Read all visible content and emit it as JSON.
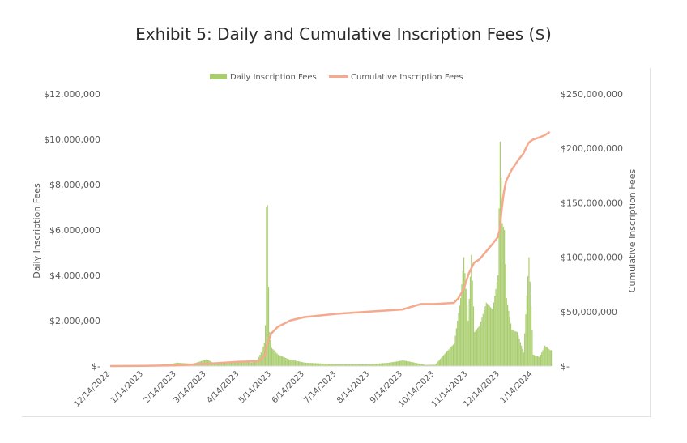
{
  "title": "Exhibit 5: Daily and Cumulative Inscription Fees ($)",
  "chart_data": {
    "type": "bar+line",
    "title": "Exhibit 5: Daily and Cumulative Inscription Fees ($)",
    "left_axis_label": "Daily Inscription Fees",
    "right_axis_label": "Cumulative Inscription Fees",
    "legend": [
      "Daily Inscription Fees",
      "Cumulative Inscription Fees"
    ],
    "legend_position": "top-center",
    "colors": {
      "daily": "#a9cd6e",
      "cumulative": "#f5a98d",
      "axis": "#d9d9d9",
      "text": "#595959"
    },
    "left_ticks": [
      "$-",
      "$2,000,000",
      "$4,000,000",
      "$6,000,000",
      "$8,000,000",
      "$10,000,000",
      "$12,000,000"
    ],
    "right_ticks": [
      "$-",
      "$50,000,000",
      "$100,000,000",
      "$150,000,000",
      "$200,000,000",
      "$250,000,000"
    ],
    "left_ylim": [
      0,
      12000000
    ],
    "right_ylim": [
      0,
      250000000
    ],
    "x_ticks": [
      "12/14/2022",
      "1/14/2023",
      "2/14/2023",
      "3/14/2023",
      "4/14/2023",
      "5/14/2023",
      "6/14/2023",
      "7/14/2023",
      "8/14/2023",
      "9/14/2023",
      "10/14/2023",
      "11/14/2023",
      "12/14/2023",
      "1/14/2024"
    ],
    "x_range": [
      "2022-12-14",
      "2024-01-31"
    ],
    "daily_series": {
      "name": "Daily Inscription Fees",
      "dates": [
        "2022-12-14",
        "2023-01-14",
        "2023-02-10",
        "2023-02-14",
        "2023-03-01",
        "2023-03-14",
        "2023-03-20",
        "2023-04-14",
        "2023-04-25",
        "2023-05-01",
        "2023-05-05",
        "2023-05-07",
        "2023-05-08",
        "2023-05-09",
        "2023-05-10",
        "2023-05-11",
        "2023-05-12",
        "2023-05-14",
        "2023-05-20",
        "2023-05-30",
        "2023-06-14",
        "2023-07-14",
        "2023-08-14",
        "2023-09-01",
        "2023-09-14",
        "2023-09-20",
        "2023-10-05",
        "2023-10-14",
        "2023-11-01",
        "2023-11-07",
        "2023-11-10",
        "2023-11-14",
        "2023-11-17",
        "2023-11-20",
        "2023-11-25",
        "2023-12-01",
        "2023-12-07",
        "2023-12-12",
        "2023-12-14",
        "2023-12-15",
        "2023-12-16",
        "2023-12-18",
        "2023-12-20",
        "2023-12-25",
        "2023-12-30",
        "2024-01-05",
        "2024-01-10",
        "2024-01-14",
        "2024-01-20",
        "2024-01-25",
        "2024-01-30"
      ],
      "values": [
        0,
        10000,
        100000,
        150000,
        100000,
        300000,
        150000,
        200000,
        150000,
        300000,
        700000,
        1000000,
        1800000,
        7000000,
        7100000,
        3500000,
        1500000,
        800000,
        500000,
        300000,
        150000,
        80000,
        80000,
        150000,
        250000,
        200000,
        50000,
        60000,
        1000000,
        3000000,
        4800000,
        2000000,
        4900000,
        1500000,
        1800000,
        2800000,
        2500000,
        4000000,
        9900000,
        8300000,
        6300000,
        6000000,
        3000000,
        1600000,
        1500000,
        600000,
        4800000,
        500000,
        400000,
        900000,
        700000
      ]
    },
    "cumulative_series": {
      "name": "Cumulative Inscription Fees",
      "dates": [
        "2022-12-14",
        "2023-01-14",
        "2023-02-14",
        "2023-03-14",
        "2023-04-14",
        "2023-05-01",
        "2023-05-05",
        "2023-05-08",
        "2023-05-10",
        "2023-05-14",
        "2023-05-20",
        "2023-06-01",
        "2023-06-14",
        "2023-07-14",
        "2023-08-14",
        "2023-09-14",
        "2023-10-01",
        "2023-10-14",
        "2023-11-01",
        "2023-11-05",
        "2023-11-10",
        "2023-11-15",
        "2023-11-20",
        "2023-11-25",
        "2023-12-01",
        "2023-12-07",
        "2023-12-12",
        "2023-12-14",
        "2023-12-16",
        "2023-12-18",
        "2023-12-20",
        "2023-12-25",
        "2024-01-01",
        "2024-01-05",
        "2024-01-10",
        "2024-01-14",
        "2024-01-20",
        "2024-01-25",
        "2024-01-30"
      ],
      "values": [
        0,
        200000,
        700000,
        2000000,
        4000000,
        4500000,
        6000000,
        10000000,
        20000000,
        30000000,
        36000000,
        42000000,
        45000000,
        48000000,
        50000000,
        52000000,
        57000000,
        57000000,
        58000000,
        62000000,
        70000000,
        85000000,
        95000000,
        98000000,
        105000000,
        112000000,
        118000000,
        125000000,
        145000000,
        160000000,
        170000000,
        180000000,
        190000000,
        195000000,
        205000000,
        208000000,
        210000000,
        212000000,
        215000000
      ]
    }
  }
}
